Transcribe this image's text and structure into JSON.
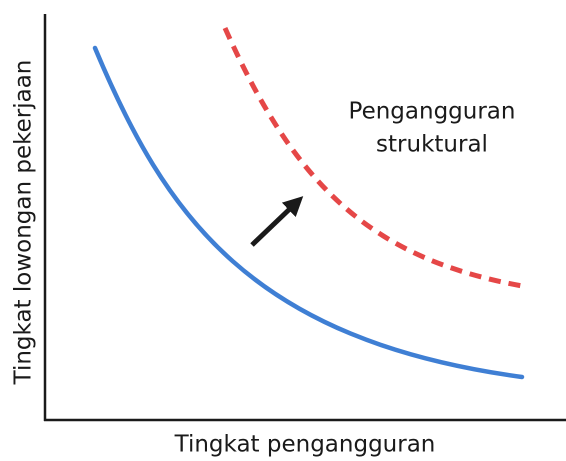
{
  "x_axis_label": "Tingkat pengangguran",
  "y_axis_label": "Tingkat lowongan pekerjaan",
  "annotation": [
    "Pengangguran",
    "struktural"
  ]
}
